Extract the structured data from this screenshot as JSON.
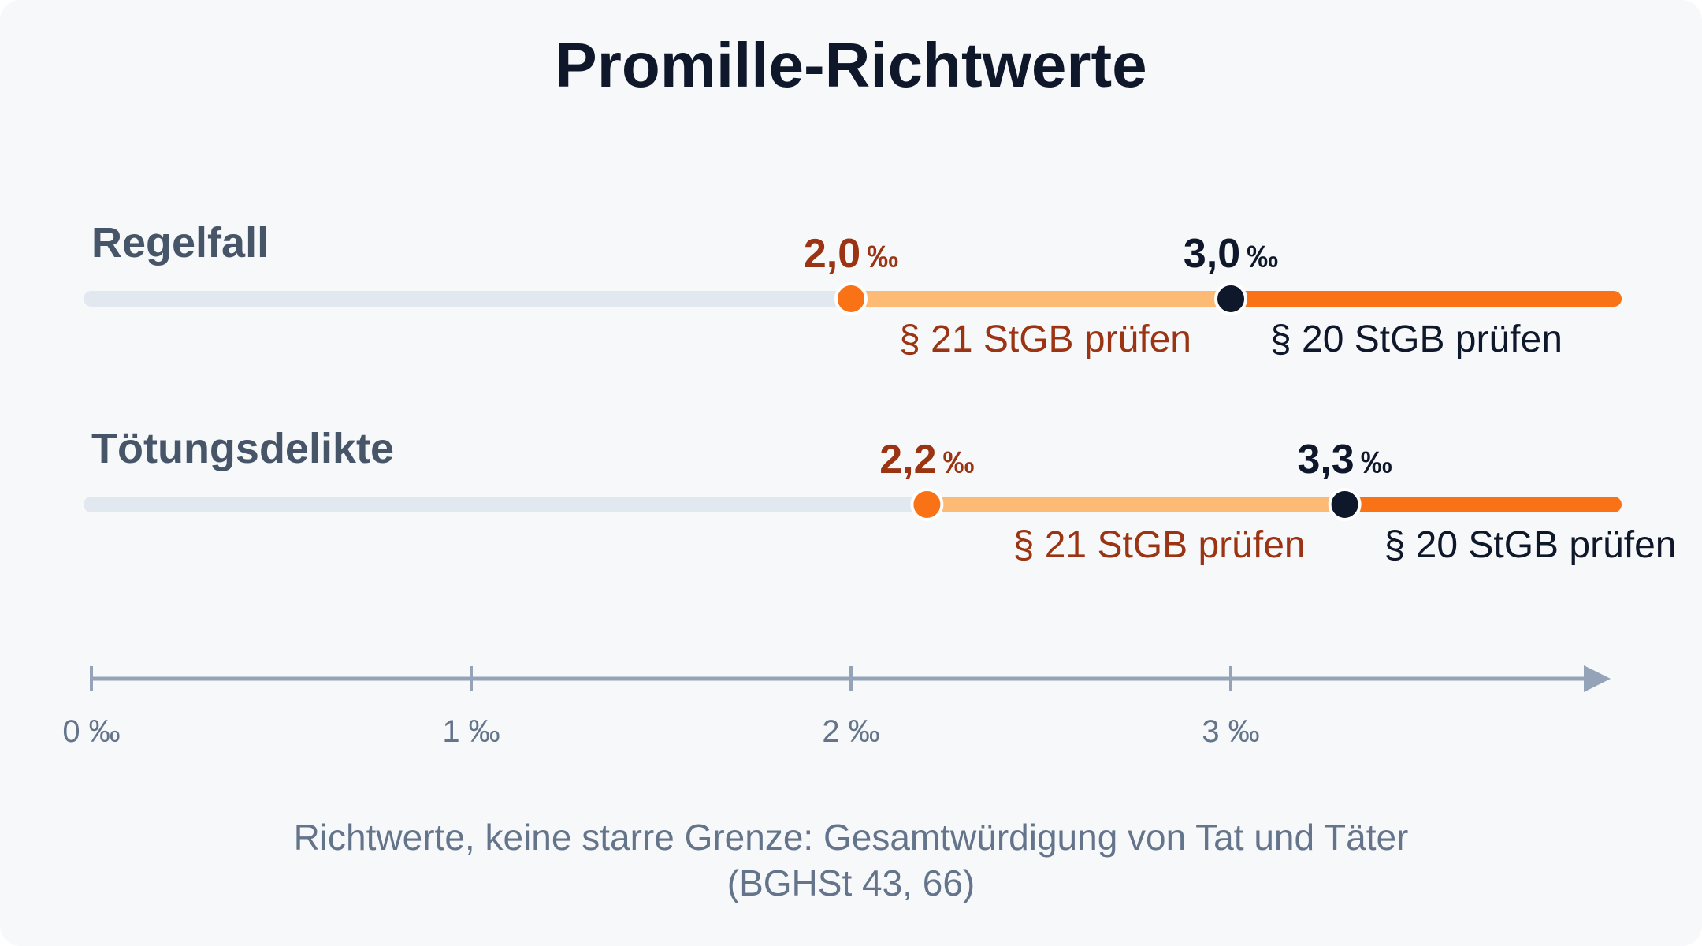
{
  "title": "Promille-Richtwerte",
  "colors": {
    "track": "#e2e8f0",
    "band_21": "#fdba74",
    "band_20": "#f97316",
    "marker_21": "#f97316",
    "marker_20": "#0f172a",
    "text_21": "#9a3412",
    "text_20": "#0f172a",
    "axis": "#94a3b8",
    "label": "#475569",
    "muted": "#64748b"
  },
  "rows": [
    {
      "label": "Regelfall",
      "t21": 2.0,
      "t21_number": "2,0",
      "t21_unit": "‰",
      "t20": 3.0,
      "t20_number": "3,0",
      "t20_unit": "‰",
      "band21_label": "§ 21 StGB prüfen",
      "band20_label": "§ 20 StGB prüfen"
    },
    {
      "label": "Tötungsdelikte",
      "t21": 2.2,
      "t21_number": "2,2",
      "t21_unit": "‰",
      "t20": 3.3,
      "t20_number": "3,3",
      "t20_unit": "‰",
      "band21_label": "§ 21 StGB prüfen",
      "band20_label": "§ 20 StGB prüfen"
    }
  ],
  "axis": {
    "min": 0,
    "max": 4,
    "ticks": [
      {
        "value": 0,
        "label": "0 ‰"
      },
      {
        "value": 1,
        "label": "1 ‰"
      },
      {
        "value": 2,
        "label": "2 ‰"
      },
      {
        "value": 3,
        "label": "3 ‰"
      }
    ]
  },
  "caption": {
    "line1": "Richtwerte, keine starre Grenze: Gesamtwürdigung von Tat und Täter",
    "line2": "(BGHSt 43, 66)"
  }
}
